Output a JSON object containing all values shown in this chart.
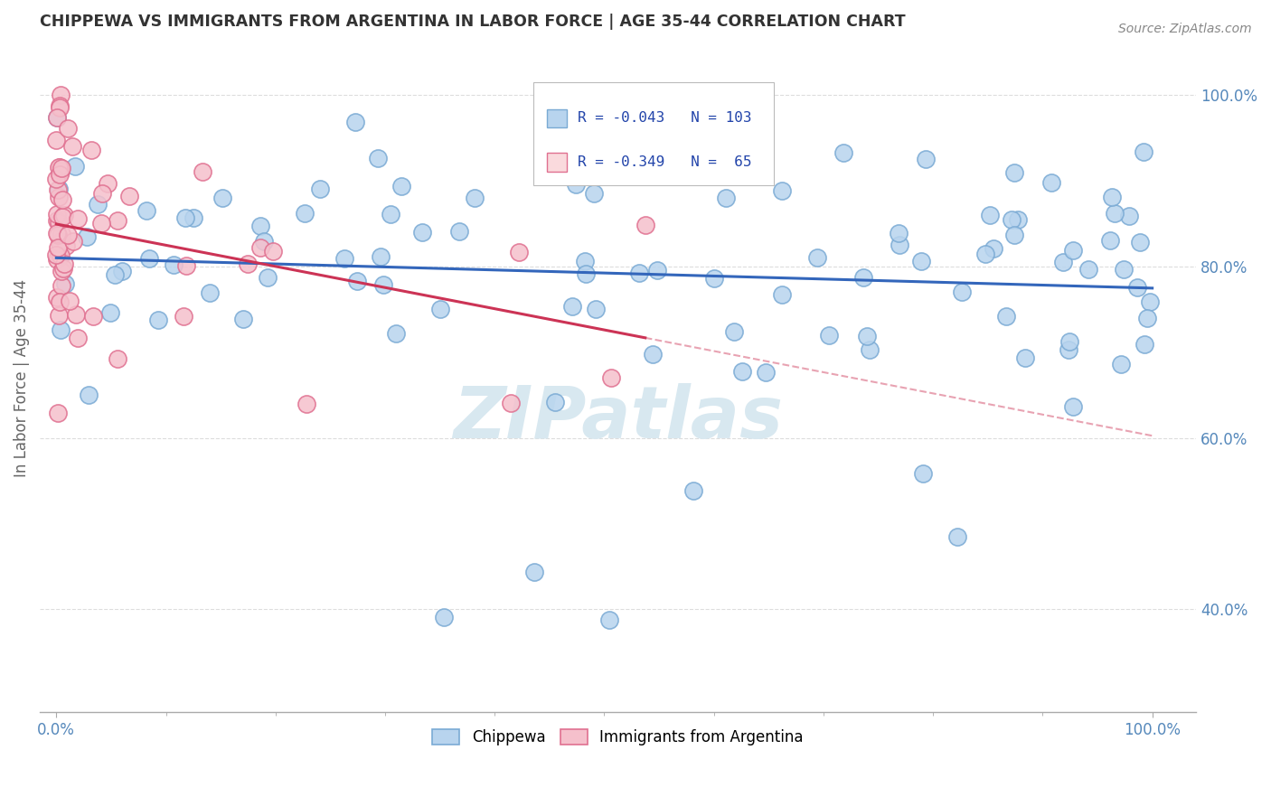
{
  "title": "CHIPPEWA VS IMMIGRANTS FROM ARGENTINA IN LABOR FORCE | AGE 35-44 CORRELATION CHART",
  "source": "Source: ZipAtlas.com",
  "ylabel": "In Labor Force | Age 35-44",
  "right_yticks": [
    40.0,
    60.0,
    80.0,
    100.0
  ],
  "blue_R": -0.043,
  "blue_N": 103,
  "pink_R": -0.349,
  "pink_N": 65,
  "blue_color": "#b8d4ee",
  "blue_edge": "#7aaad4",
  "pink_color": "#f5c0cc",
  "pink_edge": "#e07090",
  "blue_line_color": "#3366bb",
  "pink_line_color": "#cc3355",
  "watermark_color": "#d8e8f0",
  "legend_box_color": "#e8f0f8",
  "legend_pink_box": "#fadadd",
  "text_color_blue": "#2244aa",
  "axis_color": "#aaaaaa",
  "grid_color": "#dddddd",
  "xtick_color": "#5588bb",
  "ytick_color": "#5588bb",
  "ylabel_color": "#666666",
  "title_color": "#333333",
  "source_color": "#888888",
  "xlim": [
    -0.015,
    1.04
  ],
  "ylim": [
    0.28,
    1.06
  ]
}
